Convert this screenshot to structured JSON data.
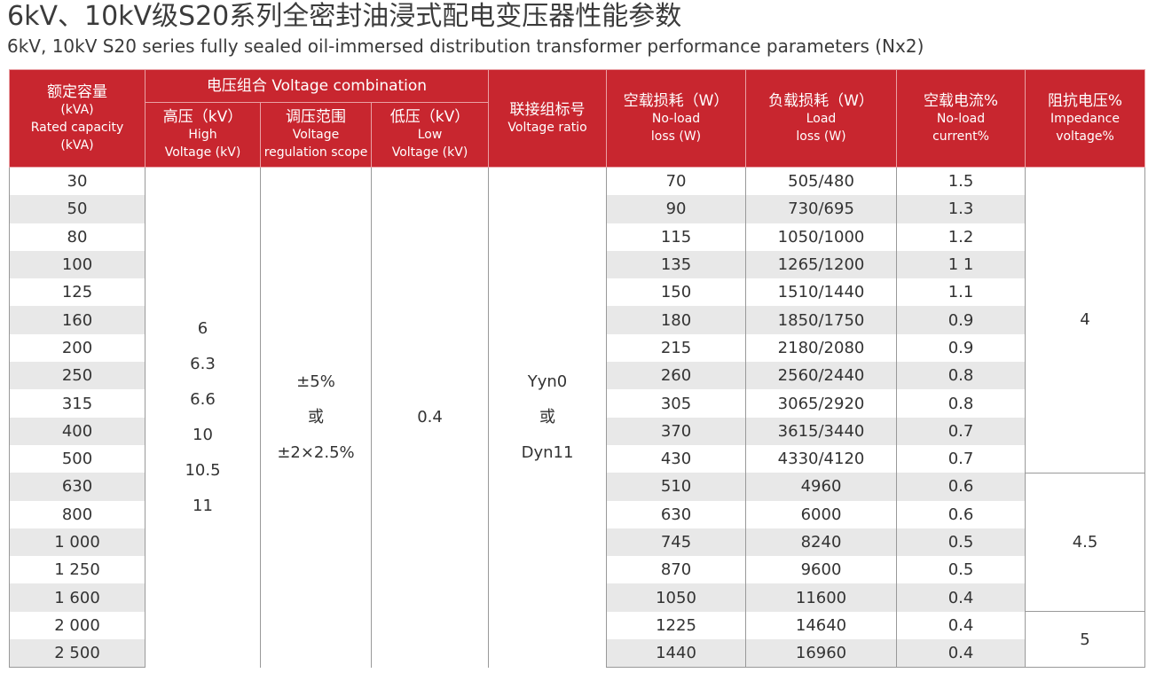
{
  "title": {
    "zh": "6kV、10kV级S20系列全密封油浸式配电变压器性能参数",
    "en": "6kV, 10kV S20 series fully sealed oil-immersed distribution transformer performance parameters (Nx2)"
  },
  "table": {
    "header": {
      "capacity": [
        "额定容量",
        "(kVA)",
        "Rated capacity",
        "(kVA)"
      ],
      "voltage_combination": "电压组合 Voltage combination",
      "high_voltage": [
        "高压（kV）",
        "High",
        "Voltage (kV)"
      ],
      "tap_range": [
        "调压范围",
        "Voltage",
        "regulation scope"
      ],
      "low_voltage": [
        "低压（kV）",
        "Low",
        "Voltage (kV)"
      ],
      "vector_group": [
        "联接组标号",
        "Voltage ratio"
      ],
      "no_load_loss": [
        "空载损耗（W）",
        "No-load",
        "loss (W)"
      ],
      "load_loss": [
        "负载损耗（W）",
        "Load",
        "loss (W)"
      ],
      "no_load_current": [
        "空载电流%",
        "No-load",
        "current%"
      ],
      "impedance": [
        "阻抗电压%",
        "Impedance",
        "voltage%"
      ]
    },
    "rows": [
      [
        "30",
        "70",
        "505/480",
        "1.5"
      ],
      [
        "50",
        "90",
        "730/695",
        "1.3"
      ],
      [
        "80",
        "115",
        "1050/1000",
        "1.2"
      ],
      [
        "100",
        "135",
        "1265/1200",
        "1 1"
      ],
      [
        "125",
        "150",
        "1510/1440",
        "1.1"
      ],
      [
        "160",
        "180",
        "1850/1750",
        "0.9"
      ],
      [
        "200",
        "215",
        "2180/2080",
        "0.9"
      ],
      [
        "250",
        "260",
        "2560/2440",
        "0.8"
      ],
      [
        "315",
        "305",
        "3065/2920",
        "0.8"
      ],
      [
        "400",
        "370",
        "3615/3440",
        "0.7"
      ],
      [
        "500",
        "430",
        "4330/4120",
        "0.7"
      ],
      [
        "630",
        "510",
        "4960",
        "0.6"
      ],
      [
        "800",
        "630",
        "6000",
        "0.6"
      ],
      [
        "1 000",
        "745",
        "8240",
        "0.5"
      ],
      [
        "1 250",
        "870",
        "9600",
        "0.5"
      ],
      [
        "1 600",
        "1050",
        "11600",
        "0.4"
      ],
      [
        "2 000",
        "1225",
        "14640",
        "0.4"
      ],
      [
        "2 500",
        "1440",
        "16960",
        "0.4"
      ]
    ],
    "high_voltage": [
      "6",
      "6.3",
      "6.6",
      "10",
      "10.5",
      "11"
    ],
    "tap_range": [
      "±5%",
      "或",
      "±2×2.5%"
    ],
    "low_voltage": "0.4",
    "vector_group": [
      "Yyn0",
      "或",
      "Dyn11"
    ],
    "impedance": [
      "4",
      "4.5",
      "5"
    ]
  }
}
